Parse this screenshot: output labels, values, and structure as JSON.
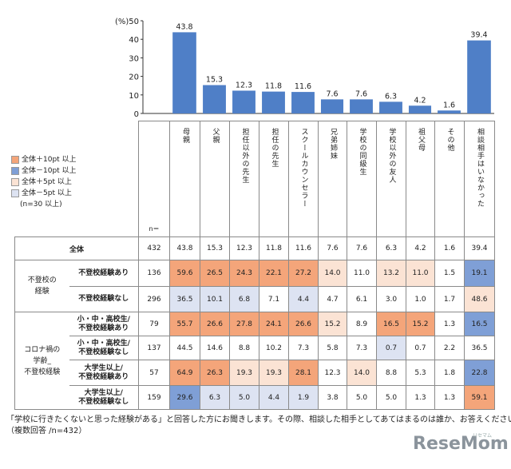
{
  "chart_data": {
    "type": "bar",
    "title": "",
    "ylabel": "(%)",
    "ylim": [
      0,
      50
    ],
    "yticks": [
      0,
      10,
      20,
      30,
      40,
      50
    ],
    "bar_color": "#4f7fc7",
    "categories": [
      "母親",
      "父親",
      "担任以外の先生",
      "担任の先生",
      "スクールカウンセラー",
      "兄弟姉妹",
      "学校の同級生",
      "学校以外の友人",
      "祖父母",
      "その他",
      "相談相手はいなかった"
    ],
    "values": [
      43.8,
      15.3,
      12.3,
      11.8,
      11.6,
      7.6,
      7.6,
      6.3,
      4.2,
      1.6,
      39.4
    ]
  },
  "table": {
    "n_header": "n＝",
    "rows": [
      {
        "group": "",
        "label": "全体",
        "n": "432",
        "values": [
          "43.8",
          "15.3",
          "12.3",
          "11.8",
          "11.6",
          "7.6",
          "7.6",
          "6.3",
          "4.2",
          "1.6",
          "39.4"
        ],
        "shade": [
          "",
          "",
          "",
          "",
          "",
          "",
          "",
          "",
          "",
          "",
          ""
        ]
      },
      {
        "group": "不登校の経験",
        "label": "不登校経験あり",
        "n": "136",
        "values": [
          "59.6",
          "26.5",
          "24.3",
          "22.1",
          "27.2",
          "14.0",
          "11.0",
          "13.2",
          "11.0",
          "1.5",
          "19.1"
        ],
        "shade": [
          "o",
          "o",
          "o",
          "o",
          "o",
          "lo",
          "",
          "lo",
          "lo",
          "",
          "b"
        ]
      },
      {
        "group": "",
        "label": "不登校経験なし",
        "n": "296",
        "values": [
          "36.5",
          "10.1",
          "6.8",
          "7.1",
          "4.4",
          "4.7",
          "6.1",
          "3.0",
          "1.0",
          "1.7",
          "48.6"
        ],
        "shade": [
          "lb",
          "lb",
          "lb",
          "",
          "lb",
          "",
          "",
          "",
          "",
          "",
          "lo"
        ]
      },
      {
        "group": "コロナ禍の学齢_不登校経験",
        "label": "小・中・高校生/不登校経験あり",
        "n": "79",
        "values": [
          "55.7",
          "26.6",
          "27.8",
          "24.1",
          "26.6",
          "15.2",
          "8.9",
          "16.5",
          "15.2",
          "1.3",
          "16.5"
        ],
        "shade": [
          "o",
          "o",
          "o",
          "o",
          "o",
          "lo",
          "",
          "o",
          "o",
          "",
          "b"
        ]
      },
      {
        "group": "",
        "label": "小・中・高校生/不登校経験なし",
        "n": "137",
        "values": [
          "44.5",
          "14.6",
          "8.8",
          "10.2",
          "7.3",
          "5.8",
          "7.3",
          "0.7",
          "0.7",
          "2.2",
          "36.5"
        ],
        "shade": [
          "",
          "",
          "",
          "",
          "",
          "",
          "",
          "lb",
          "",
          "",
          ""
        ]
      },
      {
        "group": "",
        "label": "大学生以上/不登校経験あり",
        "n": "57",
        "values": [
          "64.9",
          "26.3",
          "19.3",
          "19.3",
          "28.1",
          "12.3",
          "14.0",
          "8.8",
          "5.3",
          "1.8",
          "22.8"
        ],
        "shade": [
          "o",
          "o",
          "lo",
          "lo",
          "o",
          "",
          "lo",
          "",
          "",
          "",
          "b"
        ]
      },
      {
        "group": "",
        "label": "大学生以上/不登校経験なし",
        "n": "159",
        "values": [
          "29.6",
          "6.3",
          "5.0",
          "4.4",
          "1.9",
          "3.8",
          "5.0",
          "5.0",
          "1.3",
          "1.3",
          "59.1"
        ],
        "shade": [
          "b",
          "lb",
          "lb",
          "lb",
          "lb",
          "",
          "",
          "",
          "",
          "",
          "o"
        ]
      }
    ]
  },
  "colors": {
    "o": "#f4a57a",
    "lo": "#fbe3d4",
    "b": "#7f9fd6",
    "lb": "#dde3f2"
  },
  "legend": [
    {
      "key": "o",
      "label": "全体＋10pt 以上"
    },
    {
      "key": "b",
      "label": "全体－10pt 以上"
    },
    {
      "key": "lo",
      "label": "全体＋5pt 以上"
    },
    {
      "key": "lb",
      "label": "全体－5pt 以上"
    }
  ],
  "legend_note": "(n=30 以上)",
  "footnote": {
    "line1": "「学校に行きたくないと思った経験がある」と回答した方にお聞きします。その際、相談した相手としてあてはまるのは誰か、お答えください。",
    "line2": "（複数回答 /n=432）"
  },
  "logo": {
    "text": "ReseMom",
    "sub": "リセマム"
  }
}
